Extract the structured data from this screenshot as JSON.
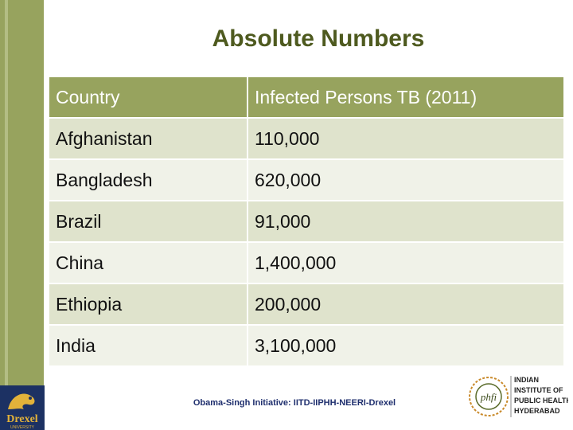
{
  "title": "Absolute Numbers",
  "table": {
    "headers": [
      "Country",
      "Infected Persons TB (2011)"
    ],
    "rows": [
      [
        "Afghanistan",
        "110,000"
      ],
      [
        "Bangladesh",
        "620,000"
      ],
      [
        "Brazil",
        "91,000"
      ],
      [
        "China",
        "1,400,000"
      ],
      [
        "Ethiopia",
        "200,000"
      ],
      [
        "India",
        "3,100,000"
      ]
    ]
  },
  "footer": "Obama-Singh Initiative: IITD-IIPHH-NEERI-Drexel",
  "logos": {
    "left_text": [
      "Drexel",
      "UNIVERSITY"
    ],
    "right_text": [
      "INDIAN",
      "INSTITUTE OF",
      "PUBLIC HEALTH",
      "HYDERABAD"
    ]
  },
  "colors": {
    "accent": "#97a35e",
    "title": "#4e5a1f",
    "row_dark": "#dfe3cc",
    "row_light": "#f0f2e8"
  }
}
